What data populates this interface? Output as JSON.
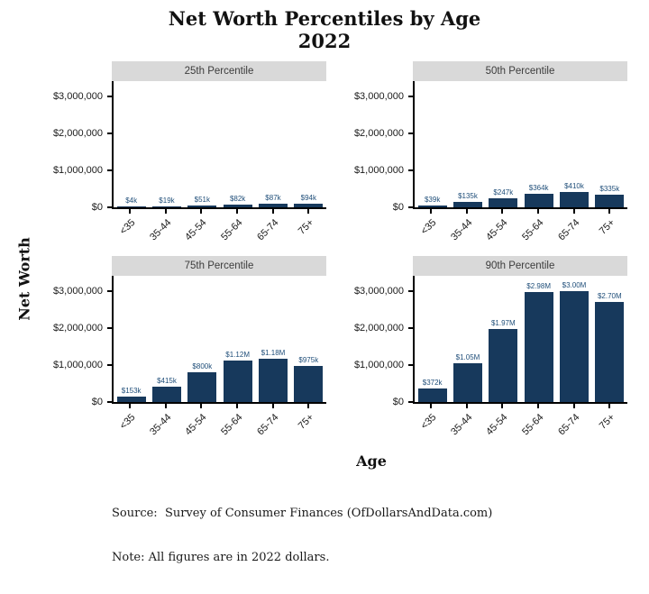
{
  "title": {
    "line1": "Net Worth Percentiles by Age",
    "line2": "2022"
  },
  "y_axis_title": "Net Worth",
  "x_axis_title": "Age",
  "footer": {
    "source_line": "Source:  Survey of Consumer Finances (OfDollarsAndData.com)",
    "note_line": "Note: All figures are in 2022 dollars."
  },
  "colors": {
    "bar_fill": "#17395c",
    "value_label": "#1f4e79",
    "strip_background": "#d9d9d9",
    "axis_line": "#000000"
  },
  "chart_data": {
    "type": "bar",
    "title": "Net Worth Percentiles by Age 2022",
    "xlabel": "Age",
    "ylabel": "Net Worth",
    "grid": "off",
    "legend": "none",
    "categories": [
      "<35",
      "35-44",
      "45-54",
      "55-64",
      "65-74",
      "75+"
    ],
    "ylim": [
      0,
      3400000
    ],
    "y_ticks": [
      {
        "label": "$0",
        "value": 0
      },
      {
        "label": "$1,000,000",
        "value": 1000000
      },
      {
        "label": "$2,000,000",
        "value": 2000000
      },
      {
        "label": "$3,000,000",
        "value": 3000000
      }
    ],
    "panels": [
      {
        "title": "25th Percentile",
        "series_values": [
          4000,
          19000,
          51000,
          82000,
          87000,
          94000
        ],
        "value_labels": [
          "$4k",
          "$19k",
          "$51k",
          "$82k",
          "$87k",
          "$94k"
        ]
      },
      {
        "title": "50th Percentile",
        "series_values": [
          39000,
          135000,
          247000,
          364000,
          410000,
          335000
        ],
        "value_labels": [
          "$39k",
          "$135k",
          "$247k",
          "$364k",
          "$410k",
          "$335k"
        ]
      },
      {
        "title": "75th Percentile",
        "series_values": [
          153000,
          415000,
          800000,
          1120000,
          1180000,
          975000
        ],
        "value_labels": [
          "$153k",
          "$415k",
          "$800k",
          "$1.12M",
          "$1.18M",
          "$975k"
        ]
      },
      {
        "title": "90th Percentile",
        "series_values": [
          372000,
          1050000,
          1970000,
          2980000,
          3000000,
          2700000
        ],
        "value_labels": [
          "$372k",
          "$1.05M",
          "$1.97M",
          "$2.98M",
          "$3.00M",
          "$2.70M"
        ]
      }
    ]
  }
}
